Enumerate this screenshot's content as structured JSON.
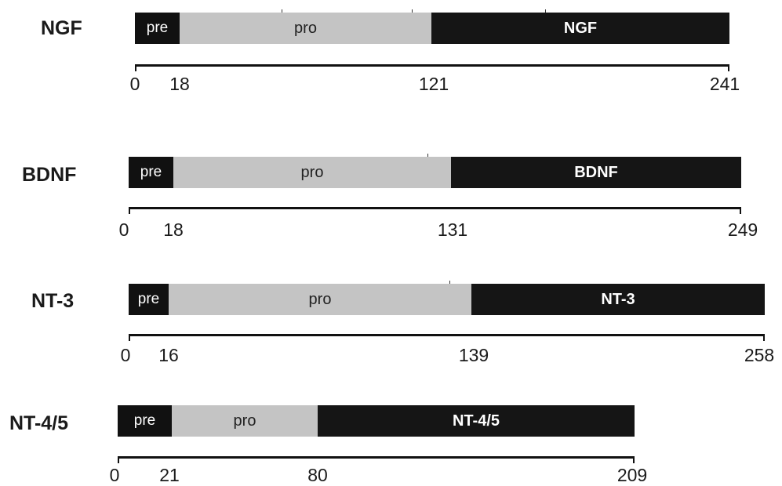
{
  "proteins": [
    {
      "name": "NGF",
      "segments": {
        "pre": "pre",
        "pro": "pro",
        "mature": "NGF"
      },
      "positions": {
        "start": 0,
        "pre_end": 18,
        "pro_end": 121,
        "end": 241
      },
      "tick_labels": [
        "0",
        "18",
        "121",
        "241"
      ]
    },
    {
      "name": "BDNF",
      "segments": {
        "pre": "pre",
        "pro": "pro",
        "mature": "BDNF"
      },
      "positions": {
        "start": 0,
        "pre_end": 18,
        "pro_end": 131,
        "end": 249
      },
      "tick_labels": [
        "0",
        "18",
        "131",
        "249"
      ]
    },
    {
      "name": "NT-3",
      "segments": {
        "pre": "pre",
        "pro": "pro",
        "mature": "NT-3"
      },
      "positions": {
        "start": 0,
        "pre_end": 16,
        "pro_end": 139,
        "end": 258
      },
      "tick_labels": [
        "0",
        "16",
        "139",
        "258"
      ]
    },
    {
      "name": "NT-4/5",
      "segments": {
        "pre": "pre",
        "pro": "pro",
        "mature": "NT-4/5"
      },
      "positions": {
        "start": 0,
        "pre_end": 21,
        "pro_end": 80,
        "end": 209
      },
      "tick_labels": [
        "0",
        "21",
        "80",
        "209"
      ]
    }
  ],
  "colors": {
    "pre": "#111111",
    "pro": "#c4c4c4",
    "mature": "#151515",
    "axis": "#111111"
  }
}
